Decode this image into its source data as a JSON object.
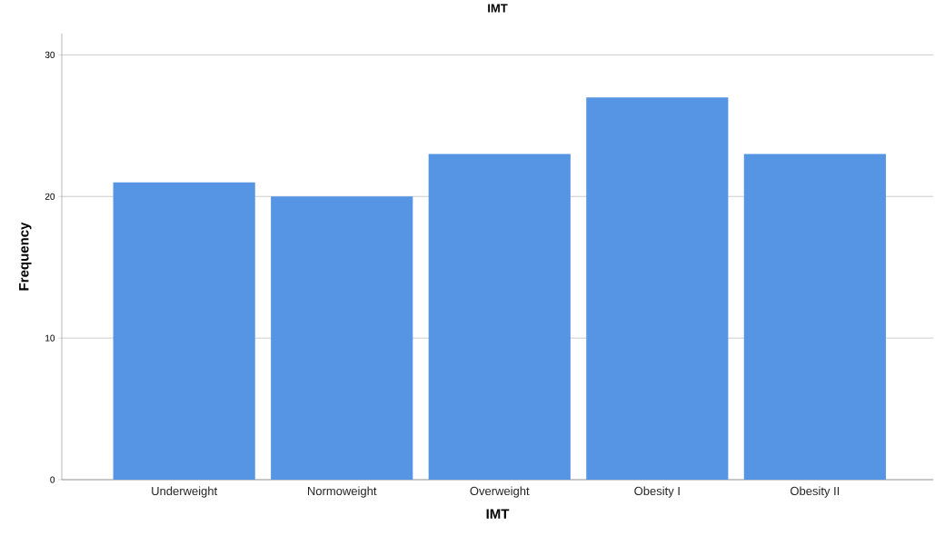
{
  "chart_data": {
    "type": "bar",
    "title": "IMT",
    "xlabel": "IMT",
    "ylabel": "Frequency",
    "categories": [
      "Underweight",
      "Normoweight",
      "Overweight",
      "Obesity I",
      "Obesity II"
    ],
    "values": [
      21,
      20,
      23,
      27,
      23
    ],
    "color": "#5595e3",
    "ylim": [
      0,
      31.5
    ],
    "yticks": [
      0,
      10,
      20,
      30
    ],
    "grid": "y"
  }
}
